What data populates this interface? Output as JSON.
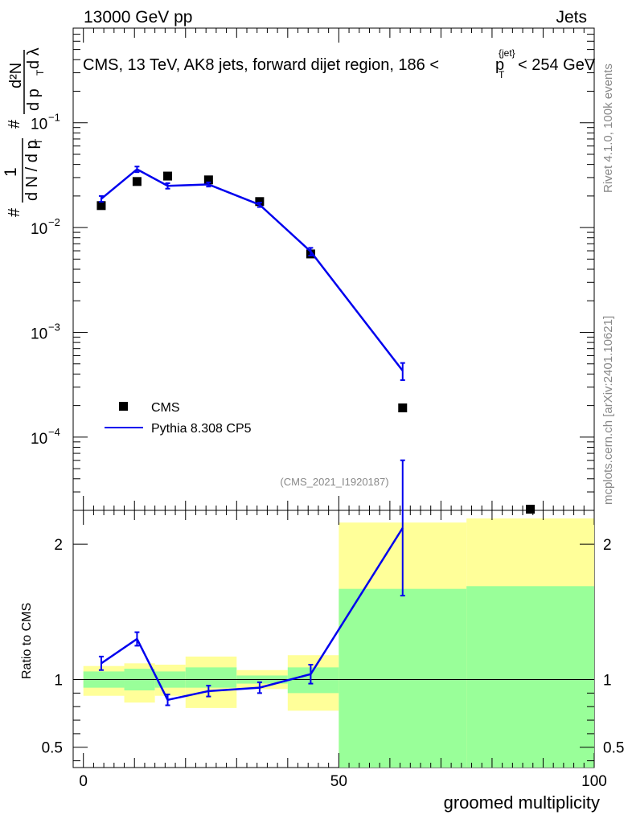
{
  "header": {
    "left": "13000 GeV pp",
    "right": "Jets",
    "title_prefix": "CMS, 13 TeV, AK8 jets, forward dijet region, 186 <",
    "title_p": "p",
    "title_sub": "T",
    "title_sup": "{jet}",
    "title_suffix": "< 254 GeV",
    "analysis_tag": "(CMS_2021_I1920187)"
  },
  "side_text": {
    "rivet": "Rivet 4.1.0,  100k events",
    "mcplots": "mcplots.cern.ch [arXiv:2401.10621]"
  },
  "y_axis_top": {
    "pieces": {
      "hash1": "#",
      "hash2": "#",
      "one": "1",
      "dN": "d N / d p",
      "T": "T",
      "d2N": "d²N",
      "dp": "d p",
      "T2": "T",
      "dlam": "d λ"
    }
  },
  "y_axis_bottom": {
    "label": "Ratio to CMS"
  },
  "x_axis": {
    "label": "groomed multiplicity"
  },
  "legend": [
    {
      "name": "CMS",
      "kind": "marker",
      "color": "#000000"
    },
    {
      "name": "Pythia 8.308 CP5",
      "kind": "line",
      "color": "#0000ee"
    }
  ],
  "chart_data": [
    {
      "type": "scatter",
      "panel": "main",
      "yscale": "log",
      "xlim": [
        -2,
        100
      ],
      "ylim": [
        2e-05,
        0.8
      ],
      "yticks": [
        {
          "value": 0.1,
          "base": "10",
          "exp": "−1"
        },
        {
          "value": 0.01,
          "base": "10",
          "exp": "−2"
        },
        {
          "value": 0.001,
          "base": "10",
          "exp": "−3"
        },
        {
          "value": 0.0001,
          "base": "10",
          "exp": "−4"
        }
      ],
      "series": [
        {
          "name": "CMS",
          "x": [
            3.5,
            10.5,
            16.5,
            24.5,
            34.5,
            44.5,
            62.5,
            87.5
          ],
          "y": [
            0.0162,
            0.0275,
            0.031,
            0.0285,
            0.0177,
            0.0056,
            0.00019,
            2.05e-05
          ]
        },
        {
          "name": "Pythia 8.308 CP5",
          "x": [
            3.5,
            10.5,
            16.5,
            24.5,
            34.5,
            44.5,
            62.5
          ],
          "y": [
            0.0188,
            0.036,
            0.025,
            0.0258,
            0.0165,
            0.0059,
            0.00043
          ],
          "err": [
            0.0012,
            0.0022,
            0.0015,
            0.0012,
            0.0008,
            0.0005,
            8e-05
          ]
        }
      ]
    },
    {
      "type": "line",
      "panel": "ratio",
      "xlim": [
        -2,
        100
      ],
      "ylim": [
        0.35,
        2.25
      ],
      "xticks": [
        0,
        50,
        100
      ],
      "yticks": [
        0.5,
        1,
        2
      ],
      "bands": {
        "edges": [
          0,
          8,
          14,
          20,
          30,
          40,
          50,
          75,
          100
        ],
        "green_lo": [
          0.94,
          0.92,
          0.94,
          0.94,
          0.97,
          0.9,
          0.35,
          0.35
        ],
        "green_hi": [
          1.06,
          1.08,
          1.06,
          1.09,
          1.03,
          1.09,
          1.67,
          1.69
        ],
        "yellow_lo": [
          0.88,
          0.83,
          0.88,
          0.79,
          0.93,
          0.77,
          0.37,
          0.35
        ],
        "yellow_hi": [
          1.1,
          1.12,
          1.11,
          1.17,
          1.07,
          1.18,
          2.16,
          2.19
        ]
      },
      "series": [
        {
          "name": "Pythia 8.308 CP5",
          "x": [
            3.5,
            10.5,
            16.5,
            24.5,
            34.5,
            44.5,
            62.5
          ],
          "y": [
            1.12,
            1.3,
            0.85,
            0.915,
            0.94,
            1.04,
            2.12
          ],
          "err": [
            0.05,
            0.05,
            0.04,
            0.04,
            0.04,
            0.07,
            0.5
          ]
        }
      ]
    }
  ]
}
